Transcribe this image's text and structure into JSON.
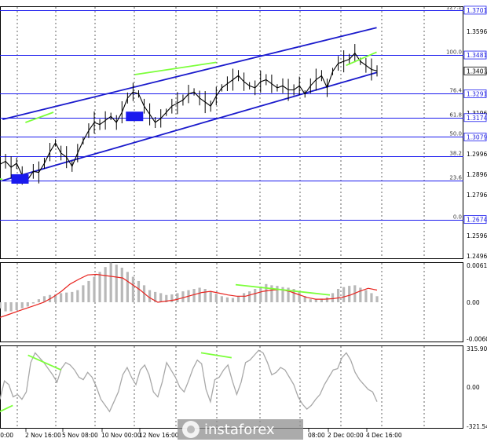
{
  "brand": {
    "logo_text": "instaforex"
  },
  "colors": {
    "price": "#000000",
    "level_line": "#1a1aee",
    "channel": "#1a1acc",
    "divergence": "#7cff3a",
    "histogram": "#b8b8b8",
    "signal": "#e8231e",
    "cci": "#a8a8a8",
    "grid": "#000000"
  },
  "chart_data": [
    {
      "type": "line",
      "name": "price",
      "x_tick_labels": [
        "ct 00:00",
        "2 Nov 16:00",
        "5 Nov 08:00",
        "10 Nov 00:00",
        "12 Nov 16:00",
        "",
        "08:00",
        "2 Dec 00:00",
        "4 Dec 16:00"
      ],
      "y_tick_labels": [
        "1.3596",
        "1.3396",
        "1.3196",
        "1.2996",
        "1.2896",
        "1.2796",
        "1.2596",
        "1.2496"
      ],
      "ylim": [
        1.248,
        1.372
      ],
      "price_label": "1.3403",
      "close_values": [
        1.2945,
        1.296,
        1.293,
        1.295,
        1.289,
        1.287,
        1.291,
        1.2905,
        1.295,
        1.3005,
        1.305,
        1.3,
        1.298,
        1.2935,
        1.3,
        1.306,
        1.311,
        1.315,
        1.314,
        1.316,
        1.318,
        1.315,
        1.32,
        1.327,
        1.33,
        1.329,
        1.323,
        1.319,
        1.315,
        1.317,
        1.32,
        1.323,
        1.3245,
        1.326,
        1.329,
        1.33,
        1.327,
        1.325,
        1.323,
        1.328,
        1.332,
        1.334,
        1.336,
        1.338,
        1.335,
        1.333,
        1.332,
        1.335,
        1.336,
        1.334,
        1.332,
        1.333,
        1.331,
        1.331,
        1.333,
        1.329,
        1.333,
        1.336,
        1.338,
        1.332,
        1.34,
        1.344,
        1.345,
        1.346,
        1.349,
        1.345,
        1.343,
        1.341,
        1.3403
      ],
      "levels": [
        {
          "label": "127.2",
          "value_label": "1.3701",
          "value": 1.3701
        },
        {
          "label": "100.0",
          "value_label": "1.3481",
          "value": 1.3481
        },
        {
          "label": "76.4",
          "value_label": "1.3291",
          "value": 1.3291
        },
        {
          "label": "61.8",
          "value_label": "1.3174",
          "value": 1.3174
        },
        {
          "label": "50.0",
          "value_label": "1.3079",
          "value": 1.3079
        },
        {
          "label": "38.2",
          "value_label": "",
          "value": 1.2984
        },
        {
          "label": "23.6",
          "value_label": "",
          "value": 1.2866
        },
        {
          "label": "0.0",
          "value_label": "1.2674",
          "value": 1.2674
        }
      ],
      "channel": {
        "upper": [
          [
            1,
            1.3165
          ],
          [
            148,
            1.3615
          ]
        ],
        "lower": [
          [
            1,
            1.2865
          ],
          [
            148,
            1.3395
          ]
        ]
      },
      "divergences": [
        [
          [
            -2,
            1.288
          ],
          [
            1,
            1.287
          ]
        ],
        [
          [
            10,
            1.315
          ],
          [
            21,
            1.32
          ]
        ],
        [
          [
            53,
            1.3385
          ],
          [
            85,
            1.3445
          ]
        ],
        [
          [
            136,
            1.343
          ],
          [
            148,
            1.3495
          ]
        ]
      ],
      "markers": [
        [
          2,
          1.2873
        ],
        [
          47,
          1.318
        ]
      ]
    },
    {
      "type": "bar",
      "name": "histogram",
      "y_tick_labels": [
        "0.0061",
        "0.00",
        "-0.00604"
      ],
      "ylim": [
        -0.0066,
        0.0066
      ],
      "values": [
        -0.001,
        -0.0015,
        -0.0015,
        -0.0013,
        -0.001,
        -0.0007,
        -0.0002,
        0.0005,
        0.001,
        0.0012,
        0.0013,
        0.0015,
        0.0016,
        0.0017,
        0.002,
        0.0028,
        0.0035,
        0.0042,
        0.005,
        0.0058,
        0.0065,
        0.0062,
        0.0057,
        0.005,
        0.0042,
        0.0035,
        0.0028,
        0.002,
        0.0017,
        0.0015,
        0.0012,
        0.0013,
        0.0015,
        0.0018,
        0.002,
        0.0022,
        0.0024,
        0.0022,
        0.0018,
        0.0014,
        0.001,
        0.0008,
        0.0007,
        0.001,
        0.0015,
        0.0018,
        0.0022,
        0.0026,
        0.003,
        0.0028,
        0.0027,
        0.0025,
        0.0024,
        0.0022,
        0.0018,
        0.001,
        0.0005,
        0.0005,
        0.0006,
        0.0008,
        0.0015,
        0.0022,
        0.0025,
        0.0027,
        0.0028,
        0.0024,
        0.002,
        0.0015,
        0.001
      ],
      "signal": [
        -0.0025,
        -0.002,
        -0.0015,
        -0.001,
        -0.0005,
        0.0,
        0.0008,
        0.0018,
        0.003,
        0.0038,
        0.0045,
        0.0046,
        0.0044,
        0.0042,
        0.004,
        0.003,
        0.002,
        0.0008,
        0.0,
        0.0002,
        0.0004,
        0.0008,
        0.0012,
        0.0016,
        0.0018,
        0.0015,
        0.0012,
        0.001,
        0.001,
        0.0014,
        0.0018,
        0.002,
        0.0021,
        0.0018,
        0.0013,
        0.0008,
        0.0005,
        0.0005,
        0.0006,
        0.0008,
        0.0012,
        0.0018,
        0.0023,
        0.002
      ]
    },
    {
      "type": "line",
      "name": "oscillator",
      "y_tick_labels": [
        "315.9023",
        "0.00",
        "-321.5472"
      ],
      "ylim": [
        -340,
        340
      ],
      "values": [
        -100,
        50,
        20,
        -80,
        -60,
        -100,
        -40,
        200,
        280,
        240,
        200,
        150,
        100,
        40,
        150,
        200,
        180,
        140,
        80,
        60,
        120,
        80,
        0,
        -100,
        -150,
        -200,
        -120,
        -40,
        100,
        160,
        80,
        20,
        140,
        180,
        100,
        -40,
        -80,
        40,
        200,
        140,
        80,
        0,
        -40,
        50,
        150,
        220,
        190,
        -20,
        -120,
        60,
        80,
        140,
        180,
        50,
        -60,
        40,
        200,
        220,
        260,
        300,
        280,
        200,
        100,
        120,
        160,
        140,
        80,
        20,
        -80,
        -140,
        -180,
        -150,
        -100,
        -60,
        20,
        80,
        140,
        150,
        240,
        280,
        220,
        120,
        60,
        20,
        -20,
        -40,
        -120
      ],
      "divergences": [
        [
          [
            -4,
            -240
          ],
          [
            5,
            -150
          ]
        ],
        [
          [
            11,
            260
          ],
          [
            24,
            140
          ]
        ],
        [
          [
            79,
            280
          ],
          [
            91,
            240
          ]
        ]
      ]
    }
  ]
}
